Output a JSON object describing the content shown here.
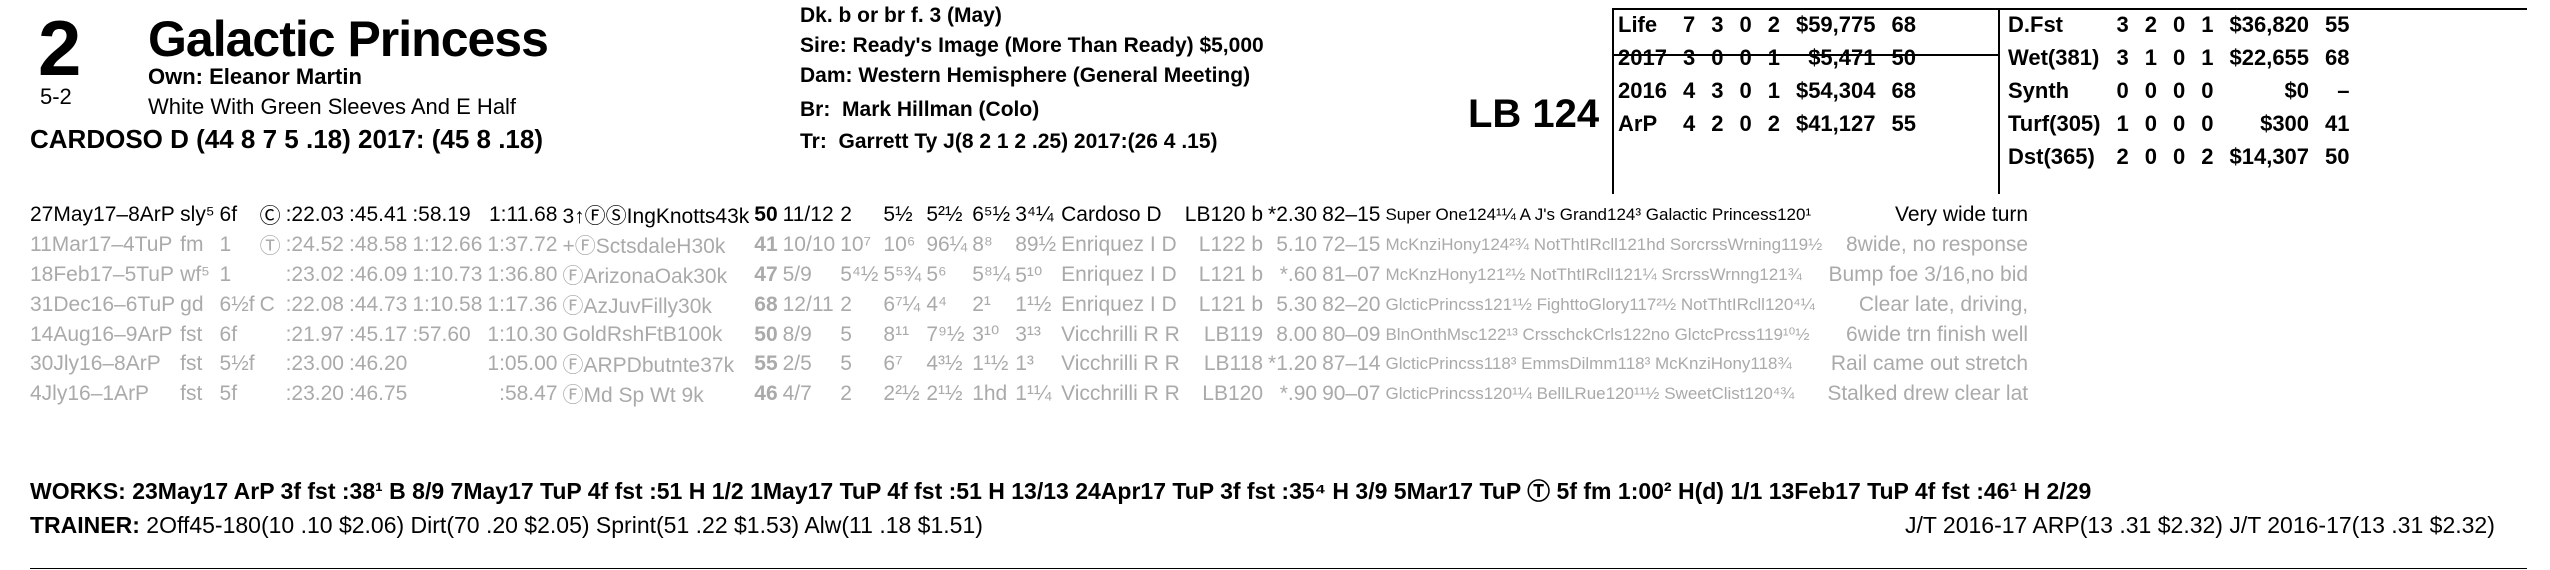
{
  "header": {
    "program_number": "2",
    "horse_name": "Galactic Princess",
    "owner": "Own: Eleanor Martin",
    "morning_line": "5-2",
    "silks": "White With Green Sleeves And E Half",
    "jockey_line": "CARDOSO D (44 8 7 5 .18) 2017: (45 8 .18)",
    "description": "Dk. b or br  f. 3 (May)",
    "sire_label": "Sire:",
    "sire": "Ready's Image (More Than Ready) $5,000",
    "dam_label": "Dam:",
    "dam": "Western Hemisphere (General Meeting)",
    "breeder_label": "Br:",
    "breeder": "Mark Hillman (Colo)",
    "trainer_label": "Tr:",
    "trainer": "Garrett Ty J(8 2 1 2 .25) 2017:(26 4 .15)",
    "lb_weight": "LB 124"
  },
  "stats_left": [
    {
      "label": "Life",
      "starts": "7",
      "w": "3",
      "p": "0",
      "s": "2",
      "earnings": "$59,775",
      "fig": "68"
    },
    {
      "label": "2017",
      "starts": "3",
      "w": "0",
      "p": "0",
      "s": "1",
      "earnings": "$5,471",
      "fig": "50"
    },
    {
      "label": "2016",
      "starts": "4",
      "w": "3",
      "p": "0",
      "s": "1",
      "earnings": "$54,304",
      "fig": "68"
    },
    {
      "label": "ArP",
      "starts": "4",
      "w": "2",
      "p": "0",
      "s": "2",
      "earnings": "$41,127",
      "fig": "55"
    }
  ],
  "stats_right": [
    {
      "label": "D.Fst",
      "starts": "3",
      "w": "2",
      "p": "0",
      "s": "1",
      "earnings": "$36,820",
      "fig": "55"
    },
    {
      "label": "Wet(381)",
      "starts": "3",
      "w": "1",
      "p": "0",
      "s": "1",
      "earnings": "$22,655",
      "fig": "68"
    },
    {
      "label": "Synth",
      "starts": "0",
      "w": "0",
      "p": "0",
      "s": "0",
      "earnings": "$0",
      "fig": "–"
    },
    {
      "label": "Turf(305)",
      "starts": "1",
      "w": "0",
      "p": "0",
      "s": "0",
      "earnings": "$300",
      "fig": "41"
    },
    {
      "label": "Dst(365)",
      "starts": "2",
      "w": "0",
      "p": "0",
      "s": "2",
      "earnings": "$14,307",
      "fig": "50"
    }
  ],
  "past_performances": [
    {
      "date": "27May17–8ArP",
      "cond": "sly⁵",
      "dist": "6f",
      "sfc": "Ⓒ",
      "f1": ":22.03",
      "f2": ":45.41",
      "f3": ":58.19",
      "fin": "1:11.68",
      "race": "3↑ⒻⓈIngKnotts43k",
      "fig": "50",
      "pp": "11/12",
      "st": "2",
      "c1": "5½",
      "c2": "5²½",
      "c3": "6⁵½",
      "c4": "3⁴¼",
      "jockey": "Cardoso D",
      "med": "LB120 b",
      "odds": "*2.30",
      "spd": "82–15",
      "comment": "Super One124¹¼ A J's Grand124³ Galactic Princess120¹",
      "trip": "Very wide turn"
    },
    {
      "date": "11Mar17–4TuP",
      "cond": "fm",
      "dist": "1",
      "sfc": "Ⓣ",
      "f1": ":24.52",
      "f2": ":48.58",
      "f3": "1:12.66",
      "fin": "1:37.72",
      "race": "+ⒻSctsdaleH30k",
      "fig": "41",
      "pp": "10/10",
      "st": "10⁷",
      "c1": "10⁶",
      "c2": "96¼",
      "c3": "8⁸",
      "c4": "89½",
      "jockey": "Enriquez I D",
      "med": "L122 b",
      "odds": "5.10",
      "spd": "72–15",
      "comment": "McKnziHony124²¾ NotThtIRcll121hd SorcrssWrning119½",
      "trip": "8wide, no response"
    },
    {
      "date": "18Feb17–5TuP",
      "cond": "wf⁵",
      "dist": "1",
      "sfc": "",
      "f1": ":23.02",
      "f2": ":46.09",
      "f3": "1:10.73",
      "fin": "1:36.80",
      "race": "ⒻArizonaOak30k",
      "fig": "47",
      "pp": "5/9",
      "st": "5⁴½",
      "c1": "5⁵¾",
      "c2": "5⁶",
      "c3": "5⁸¼",
      "c4": "5¹⁰",
      "jockey": "Enriquez I D",
      "med": "L121 b",
      "odds": "*.60",
      "spd": "81–07",
      "comment": "McKnzHony121²½ NotThtIRcll121¼ SrcrssWrnng121¾",
      "trip": "Bump foe 3/16,no bid"
    },
    {
      "date": "31Dec16–6TuP",
      "cond": "gd",
      "dist": "6½f",
      "sfc": "C",
      "f1": ":22.08",
      "f2": ":44.73",
      "f3": "1:10.58",
      "fin": "1:17.36",
      "race": "ⒻAzJuvFilly30k",
      "fig": "68",
      "pp": "12/11",
      "st": "2",
      "c1": "6⁷¼",
      "c2": "4⁴",
      "c3": "2¹",
      "c4": "1¹½",
      "jockey": "Enriquez I D",
      "med": "L121 b",
      "odds": "5.30",
      "spd": "82–20",
      "comment": "GlcticPrincss121¹½ FighttoGlory117²½ NotThtIRcll120⁴¼",
      "trip": "Clear late, driving,"
    },
    {
      "date": "14Aug16–9ArP",
      "cond": "fst",
      "dist": "6f",
      "sfc": "",
      "f1": ":21.97",
      "f2": ":45.17",
      "f3": ":57.60",
      "fin": "1:10.30",
      "race": "GoldRshFtB100k",
      "fig": "50",
      "pp": "8/9",
      "st": "5",
      "c1": "8¹¹",
      "c2": "7⁹½",
      "c3": "3¹⁰",
      "c4": "3¹³",
      "jockey": "Vicchrilli R R",
      "med": "LB119",
      "odds": "8.00",
      "spd": "80–09",
      "comment": "BlnOnthMsc122¹³ CrsschckCrls122no GlctcPrcss119¹⁰½",
      "trip": "6wide trn finish well"
    },
    {
      "date": "30Jly16–8ArP",
      "cond": "fst",
      "dist": "5½f",
      "sfc": "",
      "f1": ":23.00",
      "f2": ":46.20",
      "f3": "",
      "fin": "1:05.00",
      "race": "ⒻARPDbutnte37k",
      "fig": "55",
      "pp": "2/5",
      "st": "5",
      "c1": "6⁷",
      "c2": "4³½",
      "c3": "1¹½",
      "c4": "1³",
      "jockey": "Vicchrilli R R",
      "med": "LB118",
      "odds": "*1.20",
      "spd": "87–14",
      "comment": "GlcticPrincss118³ EmmsDilmm118³ McKnziHony118¾",
      "trip": "Rail came out stretch"
    },
    {
      "date": "4Jly16–1ArP",
      "cond": "fst",
      "dist": "5f",
      "sfc": "",
      "f1": ":23.20",
      "f2": ":46.75",
      "f3": "",
      "fin": ":58.47",
      "race": "ⒻMd Sp Wt 9k",
      "fig": "46",
      "pp": "4/7",
      "st": "2",
      "c1": "2²½",
      "c2": "2¹½",
      "c3": "1hd",
      "c4": "1¹¼",
      "jockey": "Vicchrilli R R",
      "med": "LB120",
      "odds": "*.90",
      "spd": "90–07",
      "comment": "GlcticPrincss120¹¼ BellLRue120¹¹½ SweetClist120⁴¾",
      "trip": "Stalked drew clear lat"
    }
  ],
  "works": "WORKS:  23May17 ArP 3f fst :38¹ B 8/9  7May17 TuP 4f fst :51 H 1/2  1May17 TuP 4f fst :51 H 13/13  24Apr17 TuP 3f fst :35⁴ H 3/9  5Mar17 TuP Ⓣ 5f fm 1:00² H(d) 1/1  13Feb17 TuP 4f fst :46¹ H 2/29",
  "trainer_stats": {
    "label": "TRAINER:",
    "text": "2Off45-180(10 .10 $2.06) Dirt(70 .20 $2.05) Sprint(51 .22 $1.53) Alw(11 .18 $1.51)",
    "jt": "J/T 2016-17 ARP(13 .31 $2.32)  J/T 2016-17(13 .31 $2.32)"
  }
}
